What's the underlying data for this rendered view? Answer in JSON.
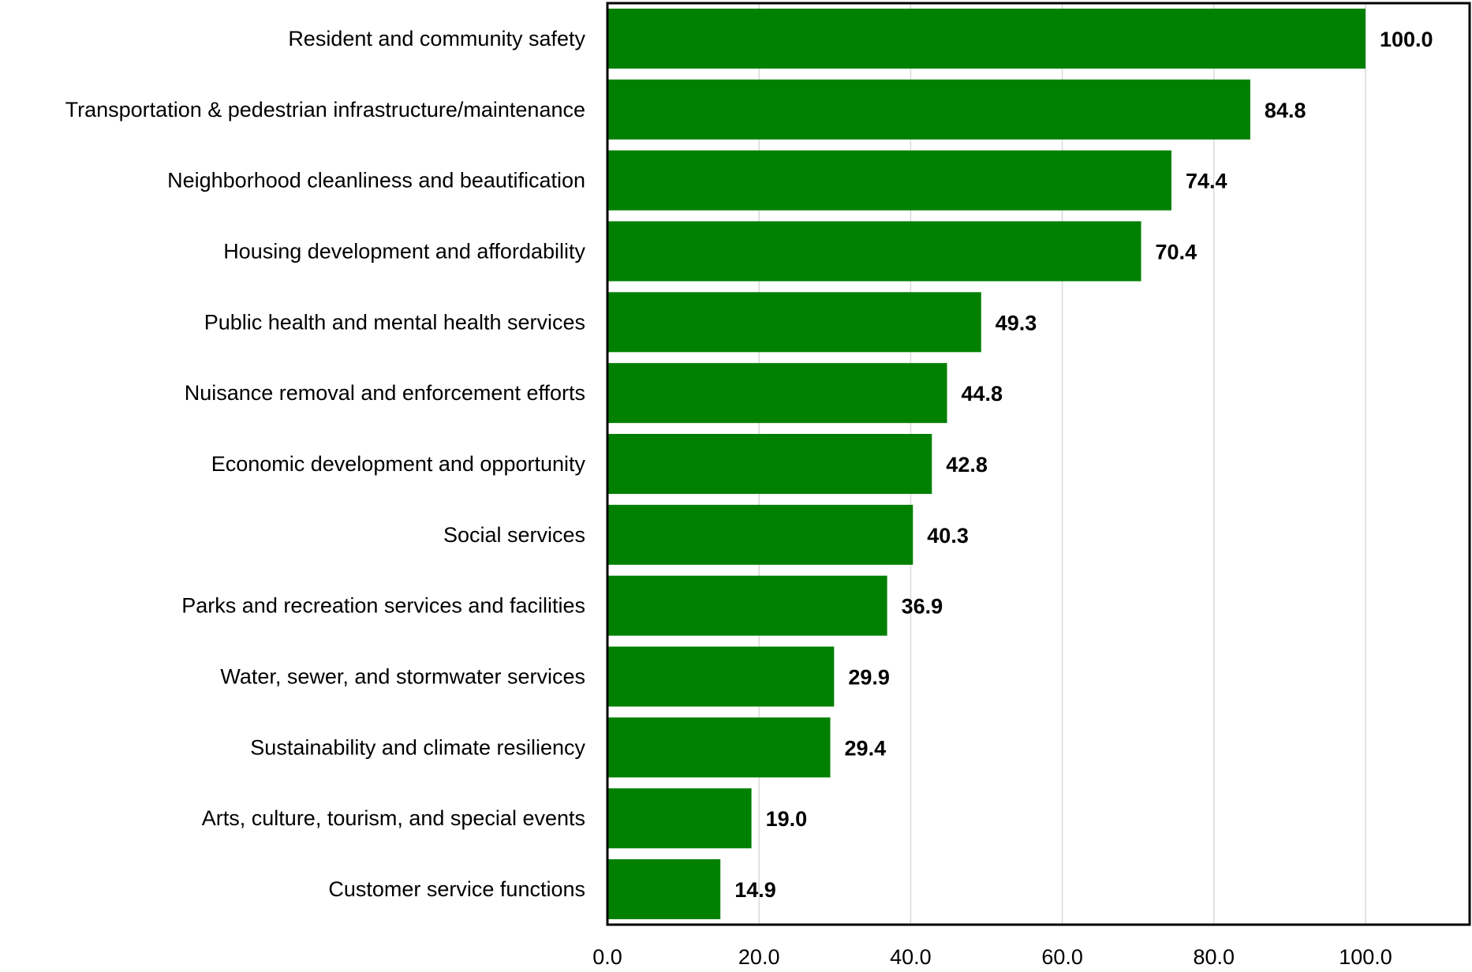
{
  "chart_data": {
    "type": "bar",
    "orientation": "horizontal",
    "categories": [
      "Resident and community safety",
      "Transportation & pedestrian infrastructure/maintenance",
      "Neighborhood cleanliness and beautification",
      "Housing development and affordability",
      "Public health and mental health services",
      "Nuisance removal and enforcement efforts",
      "Economic development and opportunity",
      "Social services",
      "Parks and recreation services and facilities",
      "Water, sewer, and stormwater services",
      "Sustainability and climate resiliency",
      "Arts, culture, tourism, and special events",
      "Customer service functions"
    ],
    "values": [
      100.0,
      84.8,
      74.4,
      70.4,
      49.3,
      44.8,
      42.8,
      40.3,
      36.9,
      29.9,
      29.4,
      19.0,
      14.9
    ],
    "value_labels": [
      "100.0",
      "84.8",
      "74.4",
      "70.4",
      "49.3",
      "44.8",
      "42.8",
      "40.3",
      "36.9",
      "29.9",
      "29.4",
      "19.0",
      "14.9"
    ],
    "x_ticks": [
      "0.0",
      "20.0",
      "40.0",
      "60.0",
      "80.0",
      "100.0"
    ],
    "xlim": [
      0,
      120
    ],
    "title": "",
    "xlabel": "",
    "ylabel": "",
    "grid": true,
    "bar_color": "#008000",
    "grid_color": "#d9d9d9"
  }
}
